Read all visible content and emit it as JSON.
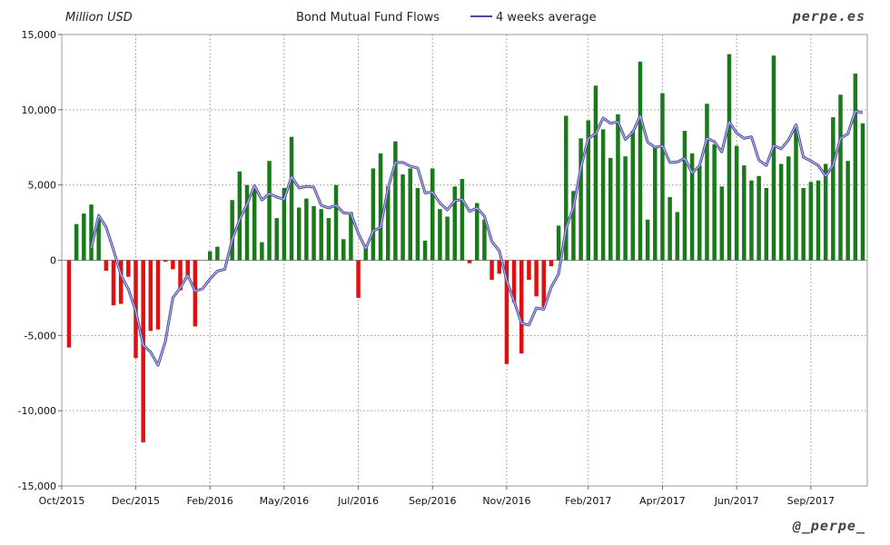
{
  "chart_data": {
    "type": "bar",
    "title": "Bond Mutual Fund Flows",
    "ylabel": "Million USD",
    "ylim": [
      -15000,
      15000
    ],
    "yticks": [
      15000,
      10000,
      5000,
      0,
      -5000,
      -10000,
      -15000
    ],
    "ytick_labels": [
      "15,000",
      "10,000",
      "5,000",
      "0",
      "-5,000",
      "-10,000",
      "-15,000"
    ],
    "xtick_labels": [
      "Oct/2015",
      "Dec/2015",
      "Feb/2016",
      "May/2016",
      "Jul/2016",
      "Sep/2016",
      "Nov/2016",
      "Feb/2017",
      "Apr/2017",
      "Jun/2017",
      "Sep/2017"
    ],
    "xtick_index": [
      0,
      9,
      19,
      29,
      39,
      49,
      59,
      70,
      80,
      90,
      100
    ],
    "grid": true,
    "legend": "top-center",
    "positive_color": "#1a7a1a",
    "negative_color": "#e01010",
    "average_color": "#4a4aa0",
    "series": [
      {
        "name": "Bond Mutual Fund Flows",
        "values": [
          -5800,
          2400,
          3100,
          3700,
          2700,
          -700,
          -3000,
          -2900,
          -1100,
          -6500,
          -12100,
          -4700,
          -4600,
          -100,
          -600,
          -2000,
          -1200,
          -4400,
          0,
          600,
          900,
          0,
          4000,
          5900,
          5000,
          4900,
          1200,
          6600,
          2800,
          4800,
          8200,
          3500,
          4100,
          3600,
          3400,
          2800,
          5000,
          1400,
          3200,
          -2500,
          1000,
          6100,
          7100,
          4900,
          7900,
          5700,
          6100,
          4800,
          1300,
          6100,
          3400,
          2900,
          4900,
          5400,
          -200,
          3800,
          2700,
          -1300,
          -900,
          -6900,
          -2800,
          -6200,
          -1300,
          -2400,
          -3100,
          -400,
          2300,
          9600,
          4600,
          8100,
          9300,
          11600,
          8700,
          6800,
          9700,
          6900,
          8600,
          13200,
          2700,
          7500,
          11100,
          4200,
          3200,
          8600,
          7100,
          6300,
          10400,
          7700,
          4900,
          13700,
          7600,
          6300,
          5300,
          5600,
          4800,
          13600,
          6400,
          6900,
          8900,
          4800,
          5200,
          5300,
          6400,
          9500,
          11000,
          6600,
          12400,
          9100
        ]
      },
      {
        "name": "4 weeks average",
        "values": [
          null,
          null,
          null,
          800,
          2975,
          2200,
          675,
          -975,
          -1925,
          -3375,
          -5650,
          -6100,
          -6975,
          -5375,
          -2500,
          -1825,
          -1000,
          -2050,
          -1900,
          -1250,
          -725,
          -600,
          1375,
          2700,
          3725,
          4950,
          4000,
          4425,
          4200,
          4050,
          5550,
          4800,
          4900,
          4850,
          3650,
          3475,
          3650,
          3150,
          3100,
          1775,
          775,
          1950,
          2175,
          4775,
          6500,
          6500,
          6250,
          6125,
          4475,
          4525,
          3800,
          3350,
          3950,
          4050,
          3250,
          3475,
          2925,
          1250,
          625,
          -1350,
          -2725,
          -4200,
          -4300,
          -3175,
          -3250,
          -1800,
          -900,
          2100,
          3525,
          6150,
          8100,
          8400,
          9450,
          9100,
          9200,
          8025,
          8500,
          9600,
          7850,
          7500,
          7600,
          6500,
          6525,
          6775,
          5800,
          6275,
          8100,
          7875,
          7200,
          9200,
          8450,
          8100,
          8200,
          6650,
          6300,
          7625,
          7400,
          8000,
          9000,
          6850,
          6600,
          6300,
          5600,
          6300,
          8100,
          8400,
          9900,
          9800
        ]
      }
    ]
  },
  "brand_top": "perpe.es",
  "brand_bottom": "@_perpe_"
}
